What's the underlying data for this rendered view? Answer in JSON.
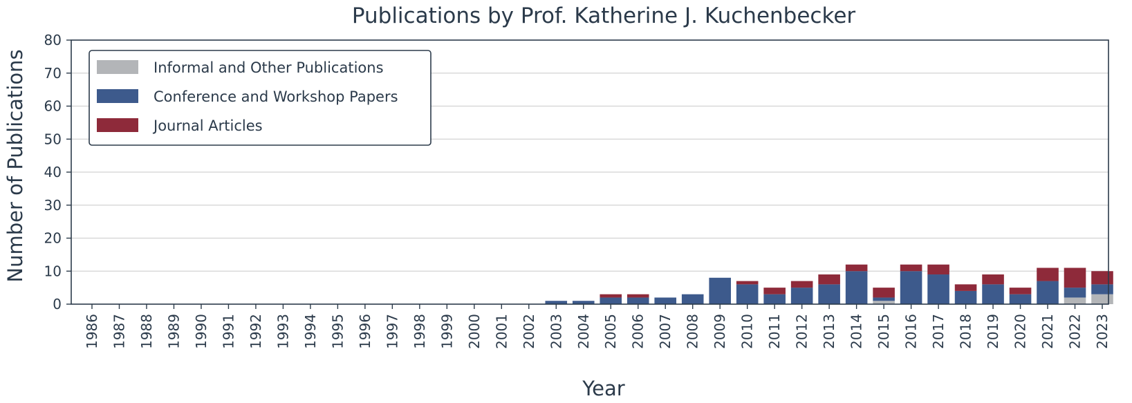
{
  "chart_data": {
    "type": "bar",
    "stacked": true,
    "title": "Publications by Prof. Katherine J. Kuchenbecker",
    "xlabel": "Year",
    "ylabel": "Number of Publications",
    "ylim": [
      0,
      80
    ],
    "yticks": [
      0,
      10,
      20,
      30,
      40,
      50,
      60,
      70,
      80
    ],
    "grid": true,
    "legend_position": "top-left",
    "categories": [
      "1986",
      "1987",
      "1988",
      "1989",
      "1990",
      "1991",
      "1992",
      "1993",
      "1994",
      "1995",
      "1996",
      "1997",
      "1998",
      "1999",
      "2000",
      "2001",
      "2002",
      "2003",
      "2004",
      "2005",
      "2006",
      "2007",
      "2008",
      "2009",
      "2010",
      "2011",
      "2012",
      "2013",
      "2014",
      "2015",
      "2016",
      "2017",
      "2018",
      "2019",
      "2020",
      "2021",
      "2022",
      "2023"
    ],
    "series": [
      {
        "name": "Informal and Other Publications",
        "color": "#b3b5b8",
        "values": [
          0,
          0,
          0,
          0,
          0,
          0,
          0,
          0,
          0,
          0,
          0,
          0,
          0,
          0,
          0,
          0,
          0,
          0,
          0,
          0,
          0,
          0,
          0,
          0,
          0,
          0,
          0,
          0,
          0,
          1,
          0,
          0,
          0,
          0,
          0,
          0,
          2,
          3
        ]
      },
      {
        "name": "Conference and Workshop Papers",
        "color": "#3d5a8c",
        "values": [
          0,
          0,
          0,
          0,
          0,
          0,
          0,
          0,
          0,
          0,
          0,
          0,
          0,
          0,
          0,
          0,
          0,
          1,
          1,
          2,
          2,
          2,
          3,
          8,
          6,
          3,
          5,
          6,
          10,
          1,
          10,
          9,
          4,
          6,
          3,
          7,
          3,
          3
        ]
      },
      {
        "name": "Journal Articles",
        "color": "#8e2a3a",
        "values": [
          0,
          0,
          0,
          0,
          0,
          0,
          0,
          0,
          0,
          0,
          0,
          0,
          0,
          0,
          0,
          0,
          0,
          0,
          0,
          1,
          1,
          0,
          0,
          0,
          1,
          2,
          2,
          3,
          2,
          3,
          2,
          3,
          2,
          3,
          2,
          4,
          6,
          4
        ]
      }
    ]
  }
}
